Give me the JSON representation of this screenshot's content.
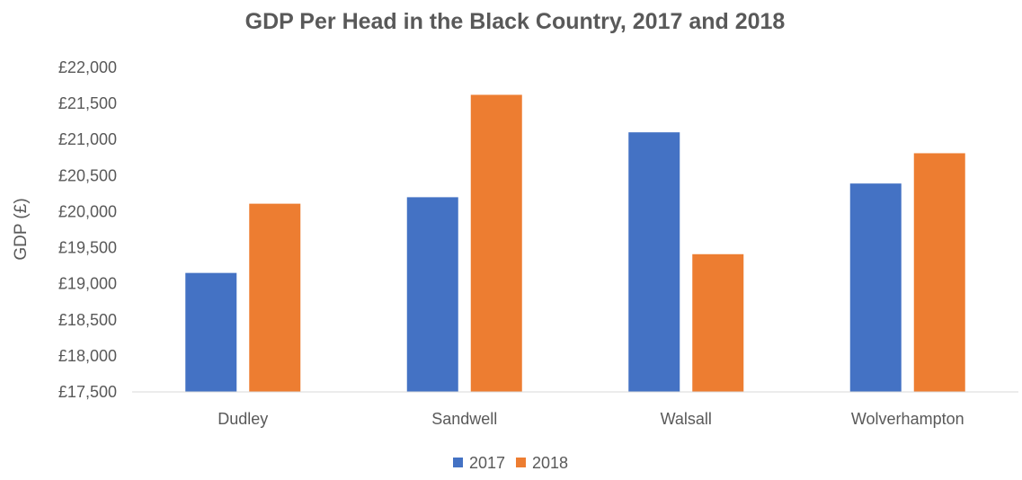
{
  "chart_data": {
    "type": "bar",
    "title": "GDP Per Head in the Black Country, 2017 and 2018",
    "xlabel": "",
    "ylabel": "GDP (£)",
    "categories": [
      "Dudley",
      "Sandwell",
      "Walsall",
      "Wolverhampton"
    ],
    "series": [
      {
        "name": "2017",
        "color": "#4472c4",
        "values": [
          19150,
          20200,
          21100,
          20390
        ]
      },
      {
        "name": "2018",
        "color": "#ed7d31",
        "values": [
          20110,
          21620,
          19410,
          20810
        ]
      }
    ],
    "ylim": [
      17500,
      22000
    ],
    "yticks": [
      "£17,500",
      "£18,000",
      "£18,500",
      "£19,000",
      "£19,500",
      "£20,000",
      "£20,500",
      "£21,000",
      "£21,500",
      "£22,000"
    ],
    "grid": false,
    "legend": "bottom"
  }
}
